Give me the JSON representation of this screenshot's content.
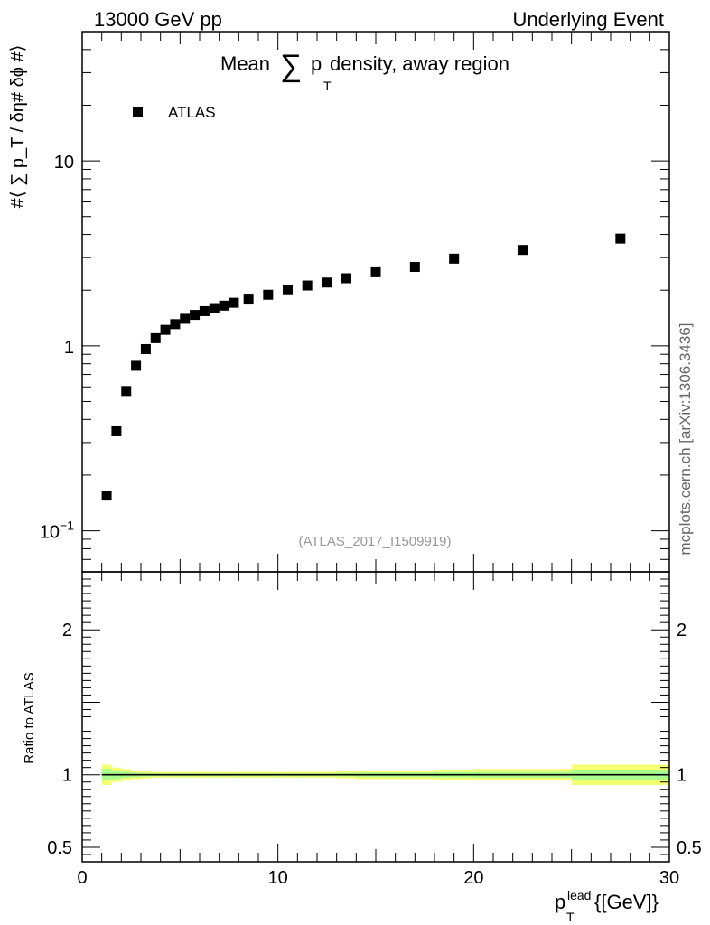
{
  "header": {
    "left": "13000 GeV pp",
    "right": "Underlying Event"
  },
  "watermark": "mcplots.cern.ch [arXiv:1306.3436]",
  "chart_data": {
    "type": "scatter",
    "title_prefix": "Mean ",
    "title_sum": "∑",
    "title_p": "p",
    "title_sub": "T",
    "title_suffix": " density, away region",
    "ylabel_main": "#⟨ ∑ p_T / δη# δϕ #⟩",
    "ylabel_ratio": "Ratio to ATLAS",
    "xlabel_p": "p",
    "xlabel_sup": "lead",
    "xlabel_sub": "T",
    "xlabel_unit": " {[GeV]}",
    "annotation": "(ATLAS_2017_I1509919)",
    "legend": {
      "label": "ATLAS",
      "placement": "top-left"
    },
    "xlim": [
      0,
      30
    ],
    "ylim_main": [
      0.06,
      50
    ],
    "ylog": true,
    "ylim_ratio": [
      0.4,
      2.4
    ],
    "main_yticks": [
      {
        "value": 0.1,
        "base": "10",
        "exp": "−1"
      },
      {
        "value": 1,
        "base": "1",
        "exp": ""
      },
      {
        "value": 10,
        "base": "10",
        "exp": ""
      }
    ],
    "ratio_yticks": [
      {
        "value": 0.5,
        "label": "0.5"
      },
      {
        "value": 1,
        "label": "1"
      },
      {
        "value": 2,
        "label": "2"
      }
    ],
    "xticks": [
      {
        "value": 0,
        "label": "0"
      },
      {
        "value": 10,
        "label": "10"
      },
      {
        "value": 20,
        "label": "20"
      },
      {
        "value": 30,
        "label": "30"
      }
    ],
    "series": [
      {
        "name": "ATLAS",
        "marker": "square",
        "color": "#000000",
        "x": [
          1.25,
          1.75,
          2.25,
          2.75,
          3.25,
          3.75,
          4.25,
          4.75,
          5.25,
          5.75,
          6.25,
          6.75,
          7.25,
          7.75,
          8.5,
          9.5,
          10.5,
          11.5,
          12.5,
          13.5,
          15.0,
          17.0,
          19.0,
          22.5,
          27.5
        ],
        "y": [
          0.155,
          0.345,
          0.57,
          0.78,
          0.96,
          1.1,
          1.22,
          1.31,
          1.4,
          1.47,
          1.54,
          1.6,
          1.65,
          1.71,
          1.78,
          1.89,
          2.0,
          2.12,
          2.2,
          2.32,
          2.5,
          2.67,
          2.96,
          3.3,
          3.8
        ]
      }
    ],
    "ratio_band": {
      "line_value": 1,
      "line_color": "#000000",
      "band_color": "#f5ff72",
      "inner_color": "#a8ff8c",
      "x_edges": [
        1.0,
        1.5,
        2.0,
        2.5,
        3.0,
        3.5,
        4.0,
        4.5,
        5.0,
        5.5,
        6.0,
        6.5,
        7.0,
        7.5,
        8.0,
        9.0,
        10.0,
        11.0,
        12.0,
        13.0,
        14.0,
        16.0,
        18.0,
        20.0,
        25.0,
        30.0
      ],
      "outer_half_width": [
        0.07,
        0.05,
        0.04,
        0.03,
        0.025,
        0.02,
        0.02,
        0.02,
        0.02,
        0.02,
        0.02,
        0.02,
        0.02,
        0.02,
        0.02,
        0.02,
        0.02,
        0.02,
        0.02,
        0.025,
        0.03,
        0.03,
        0.035,
        0.04,
        0.07
      ],
      "inner_half_width": [
        0.04,
        0.03,
        0.02,
        0.015,
        0.012,
        0.01,
        0.01,
        0.01,
        0.01,
        0.01,
        0.01,
        0.01,
        0.01,
        0.01,
        0.01,
        0.01,
        0.01,
        0.01,
        0.01,
        0.012,
        0.015,
        0.015,
        0.018,
        0.02,
        0.035
      ]
    }
  }
}
